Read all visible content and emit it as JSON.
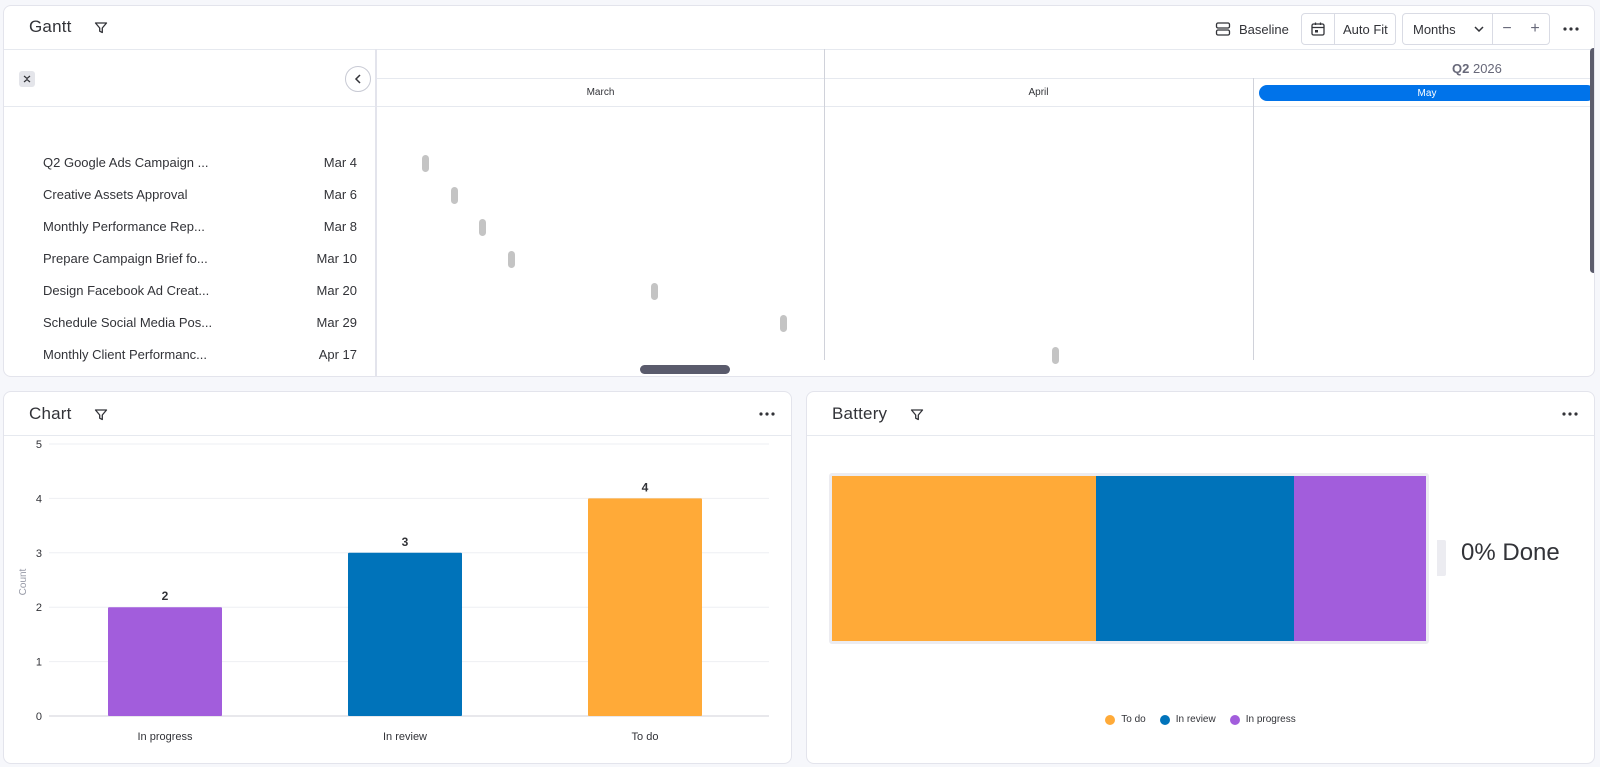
{
  "gantt": {
    "title": "Gantt",
    "toolbar": {
      "baseline_label": "Baseline",
      "autofit_label": "Auto Fit",
      "zoom_select": "Months",
      "zoom_out": "−",
      "zoom_in": "+"
    },
    "timeline": {
      "quarter_bold": "Q2",
      "quarter_year": "2026",
      "months": [
        "March",
        "April",
        "May"
      ],
      "current_month": "May"
    },
    "tasks": [
      {
        "name": "Q2 Google Ads Campaign ...",
        "date": "Mar 4"
      },
      {
        "name": "Creative Assets Approval",
        "date": "Mar 6"
      },
      {
        "name": "Monthly Performance Rep...",
        "date": "Mar 8"
      },
      {
        "name": "Prepare Campaign Brief fo...",
        "date": "Mar 10"
      },
      {
        "name": "Design Facebook Ad Creat...",
        "date": "Mar 20"
      },
      {
        "name": "Schedule Social Media Pos...",
        "date": "Mar 29"
      },
      {
        "name": "Monthly Client Performanc...",
        "date": "Apr 17"
      }
    ]
  },
  "chart": {
    "title": "Chart",
    "chart_data": {
      "type": "bar",
      "categories": [
        "In progress",
        "In review",
        "To do"
      ],
      "values": [
        2,
        3,
        4
      ],
      "colors": [
        "#a25ddc",
        "#0073ba",
        "#ffaa38"
      ],
      "ylabel": "Count",
      "xlabel": "",
      "ylim": [
        0,
        5
      ],
      "yticks": [
        "0",
        "1",
        "2",
        "3",
        "4",
        "5"
      ],
      "data_labels": [
        "2",
        "3",
        "4"
      ],
      "grid": true
    }
  },
  "battery": {
    "title": "Battery",
    "done_text": "0% Done",
    "segments": [
      {
        "label": "To do",
        "value": 4,
        "color": "#ffaa38"
      },
      {
        "label": "In review",
        "value": 3,
        "color": "#0073ba"
      },
      {
        "label": "In progress",
        "value": 2,
        "color": "#a25ddc"
      }
    ]
  },
  "colors": {
    "accent": "#0073ea",
    "scrollbar": "#5a5b6c",
    "gantt_mark": "#c4c4c4"
  }
}
